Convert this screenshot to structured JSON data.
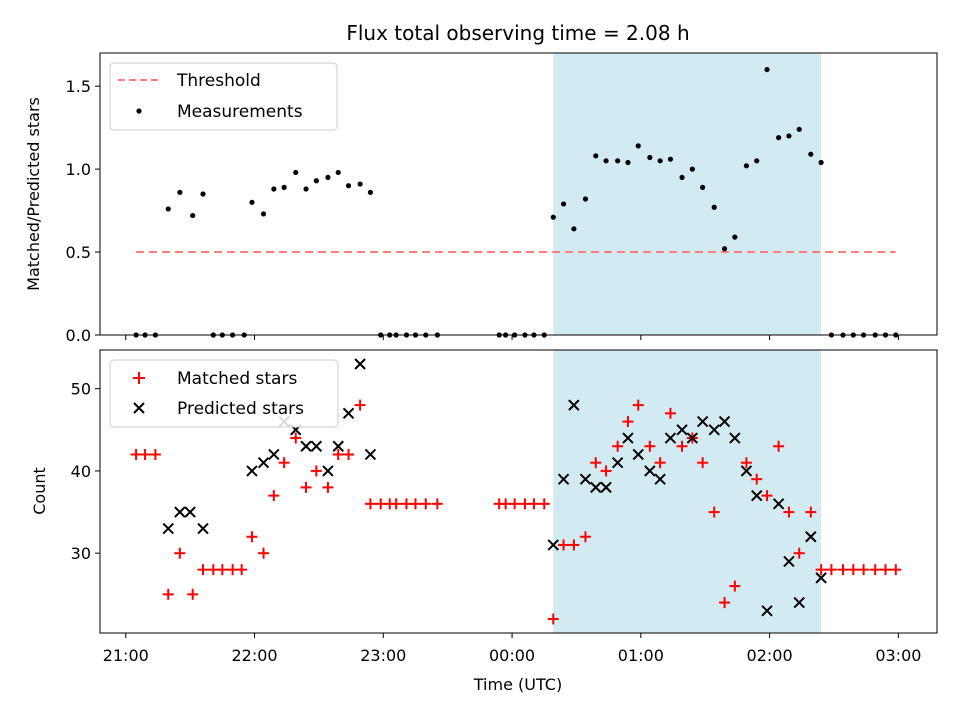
{
  "chart_data": [
    {
      "type": "scatter",
      "title": "Flux total observing time = 2.08 h",
      "xlabel": "",
      "ylabel": "Matched/Predicted stars",
      "x_unit": "hours since 21:00 UTC",
      "xlim": [
        -0.2,
        6.3
      ],
      "ylim": [
        0,
        1.7
      ],
      "yticks": [
        0.0,
        0.5,
        1.0,
        1.5
      ],
      "ytick_labels": [
        "0.0",
        "0.5",
        "1.0",
        "1.5"
      ],
      "shaded_region": {
        "x_start": 3.32,
        "x_end": 5.4,
        "color": "#add8e6"
      },
      "threshold": {
        "name": "Threshold",
        "y": 0.5,
        "x_start": 0.08,
        "x_end": 5.98,
        "color": "#ff7f7f"
      },
      "series": [
        {
          "name": "Measurements",
          "color": "#000000",
          "x": [
            0.08,
            0.15,
            0.23,
            0.33,
            0.42,
            0.52,
            0.6,
            0.68,
            0.75,
            0.83,
            0.92,
            0.98,
            1.07,
            1.15,
            1.23,
            1.32,
            1.4,
            1.48,
            1.57,
            1.65,
            1.73,
            1.82,
            1.9,
            1.98,
            2.05,
            2.1,
            2.18,
            2.25,
            2.33,
            2.42,
            2.9,
            2.95,
            3.02,
            3.1,
            3.17,
            3.25,
            3.32,
            3.4,
            3.48,
            3.57,
            3.65,
            3.73,
            3.82,
            3.9,
            3.98,
            4.07,
            4.15,
            4.23,
            4.32,
            4.4,
            4.48,
            4.57,
            4.65,
            4.73,
            4.82,
            4.9,
            4.98,
            5.07,
            5.15,
            5.23,
            5.32,
            5.4,
            5.48,
            5.57,
            5.65,
            5.73,
            5.82,
            5.9,
            5.98
          ],
          "y": [
            0,
            0,
            0,
            0.76,
            0.86,
            0.72,
            0.85,
            0,
            0,
            0,
            0,
            0.8,
            0.73,
            0.88,
            0.89,
            0.98,
            0.88,
            0.93,
            0.95,
            0.98,
            0.9,
            0.91,
            0.86,
            0,
            0,
            0,
            0,
            0,
            0,
            0,
            0,
            0,
            0,
            0,
            0,
            0,
            0.71,
            0.79,
            0.64,
            0.82,
            1.08,
            1.05,
            1.05,
            1.04,
            1.14,
            1.07,
            1.05,
            1.06,
            0.95,
            1.0,
            0.89,
            0.77,
            0.52,
            0.59,
            1.02,
            1.05,
            1.6,
            1.19,
            1.2,
            1.24,
            1.09,
            1.04,
            0,
            0,
            0,
            0,
            0,
            0,
            0
          ]
        }
      ],
      "legend": {
        "placement": "upper-left",
        "entries": [
          "Threshold",
          "Measurements"
        ]
      }
    },
    {
      "type": "scatter",
      "title": "",
      "xlabel": "Time (UTC)",
      "ylabel": "Count",
      "x_unit": "hours since 21:00 UTC",
      "xlim": [
        -0.2,
        6.3
      ],
      "ylim": [
        20.3,
        54.7
      ],
      "yticks": [
        30,
        40,
        50
      ],
      "ytick_labels": [
        "30",
        "40",
        "50"
      ],
      "xticks": [
        0,
        1,
        2,
        3,
        4,
        5,
        6
      ],
      "xtick_labels": [
        "21:00",
        "22:00",
        "23:00",
        "00:00",
        "01:00",
        "02:00",
        "03:00"
      ],
      "shaded_region": {
        "x_start": 3.32,
        "x_end": 5.4,
        "color": "#add8e6"
      },
      "series": [
        {
          "name": "Matched stars",
          "marker": "plus",
          "color": "#ff0000",
          "x": [
            0.08,
            0.15,
            0.23,
            0.33,
            0.42,
            0.52,
            0.6,
            0.68,
            0.75,
            0.83,
            0.9,
            0.98,
            1.07,
            1.15,
            1.23,
            1.32,
            1.4,
            1.48,
            1.57,
            1.65,
            1.73,
            1.82,
            1.9,
            1.98,
            2.05,
            2.1,
            2.18,
            2.25,
            2.33,
            2.42,
            2.9,
            2.95,
            3.02,
            3.1,
            3.17,
            3.25,
            3.32,
            3.4,
            3.48,
            3.57,
            3.65,
            3.73,
            3.82,
            3.9,
            3.98,
            4.07,
            4.15,
            4.23,
            4.32,
            4.4,
            4.48,
            4.57,
            4.65,
            4.73,
            4.82,
            4.9,
            4.98,
            5.07,
            5.15,
            5.23,
            5.32,
            5.4,
            5.48,
            5.57,
            5.65,
            5.73,
            5.82,
            5.9,
            5.98
          ],
          "y": [
            42,
            42,
            42,
            25,
            30,
            25,
            28,
            28,
            28,
            28,
            28,
            32,
            30,
            37,
            41,
            44,
            38,
            40,
            38,
            42,
            42,
            48,
            36,
            36,
            36,
            36,
            36,
            36,
            36,
            36,
            36,
            36,
            36,
            36,
            36,
            36,
            22,
            31,
            31,
            32,
            41,
            40,
            43,
            46,
            48,
            43,
            41,
            47,
            43,
            44,
            41,
            35,
            24,
            26,
            41,
            39,
            37,
            43,
            35,
            30,
            35,
            28,
            28,
            28,
            28,
            28,
            28,
            28,
            28
          ]
        },
        {
          "name": "Predicted stars",
          "marker": "x",
          "color": "#000000",
          "x": [
            0.33,
            0.42,
            0.5,
            0.6,
            0.98,
            1.07,
            1.15,
            1.23,
            1.32,
            1.4,
            1.48,
            1.57,
            1.65,
            1.73,
            1.82,
            1.9,
            3.32,
            3.4,
            3.48,
            3.57,
            3.65,
            3.73,
            3.82,
            3.9,
            3.98,
            4.07,
            4.15,
            4.23,
            4.32,
            4.4,
            4.48,
            4.57,
            4.65,
            4.73,
            4.82,
            4.9,
            4.98,
            5.07,
            5.15,
            5.23,
            5.32,
            5.4
          ],
          "y": [
            33,
            35,
            35,
            33,
            40,
            41,
            42,
            46,
            45,
            43,
            43,
            40,
            43,
            47,
            53,
            42,
            31,
            39,
            48,
            39,
            38,
            38,
            41,
            44,
            42,
            40,
            39,
            44,
            45,
            44,
            46,
            45,
            46,
            44,
            40,
            37,
            23,
            36,
            29,
            24,
            32,
            27
          ]
        }
      ],
      "legend": {
        "placement": "upper-left",
        "entries": [
          "Matched stars",
          "Predicted stars"
        ]
      }
    }
  ]
}
